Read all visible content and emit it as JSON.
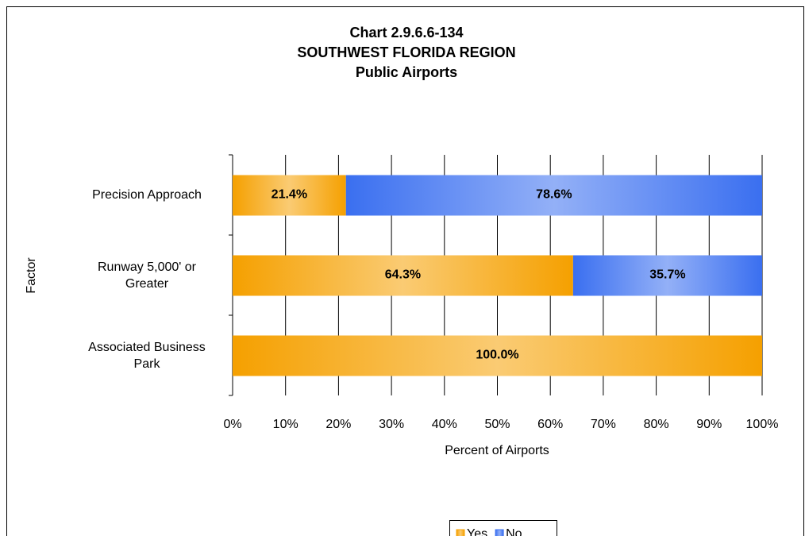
{
  "chart_data": {
    "type": "stacked_barh",
    "title": [
      "Chart 2.9.6.6-134",
      "SOUTHWEST FLORIDA REGION",
      "Public Airports"
    ],
    "xlabel": "Percent of Airports",
    "ylabel": "Factor",
    "categories": [
      "Precision Approach",
      "Runway 5,000' or Greater",
      "Associated Business Park"
    ],
    "series": [
      {
        "name": "Yes",
        "color": "#f5a000",
        "values": [
          21.4,
          64.3,
          100.0
        ],
        "value_labels": [
          "21.4%",
          "64.3%",
          "100.0%"
        ]
      },
      {
        "name": "No",
        "color": "#3a6ff0",
        "values": [
          78.6,
          35.7,
          0
        ],
        "value_labels": [
          "78.6%",
          "35.7%",
          null
        ]
      }
    ],
    "xlim": [
      0,
      100
    ],
    "xticks": [
      {
        "value": 0,
        "label": "0%"
      },
      {
        "value": 10,
        "label": "10%"
      },
      {
        "value": 20,
        "label": "20%"
      },
      {
        "value": 30,
        "label": "30%"
      },
      {
        "value": 40,
        "label": "40%"
      },
      {
        "value": 50,
        "label": "50%"
      },
      {
        "value": 60,
        "label": "60%"
      },
      {
        "value": 70,
        "label": "70%"
      },
      {
        "value": 80,
        "label": "80%"
      },
      {
        "value": 90,
        "label": "90%"
      },
      {
        "value": 100,
        "label": "100%"
      }
    ],
    "grid": true,
    "legend": "bottom"
  }
}
